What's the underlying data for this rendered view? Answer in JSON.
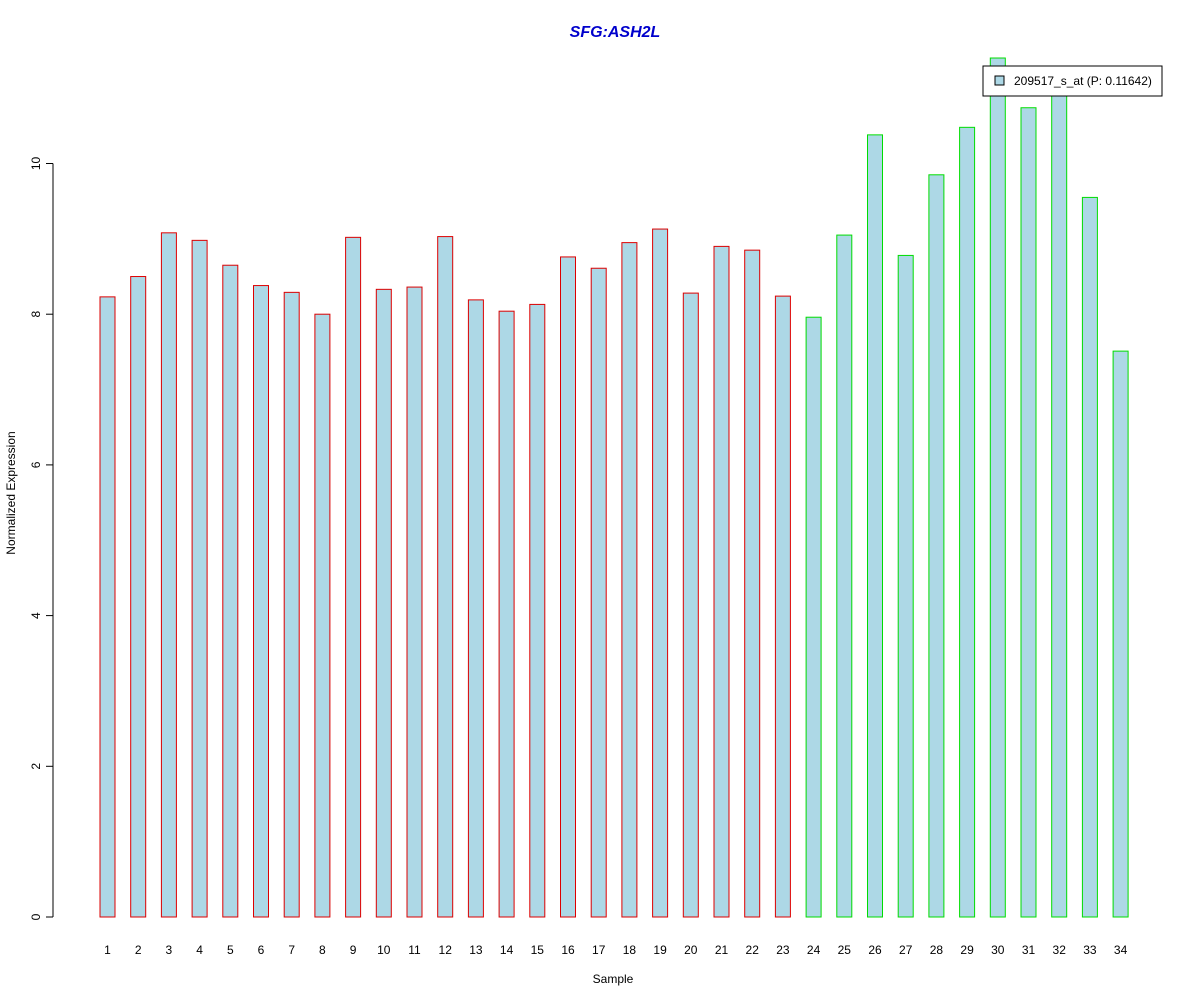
{
  "chart_data": {
    "type": "bar",
    "title": "SFG:ASH2L",
    "xlabel": "Sample",
    "ylabel": "Normalized Expression",
    "ylim": [
      0,
      11.4
    ],
    "y_ticks": [
      0,
      2,
      4,
      6,
      8,
      10
    ],
    "grid": false,
    "categories": [
      "1",
      "2",
      "3",
      "4",
      "5",
      "6",
      "7",
      "8",
      "9",
      "10",
      "11",
      "12",
      "13",
      "14",
      "15",
      "16",
      "17",
      "18",
      "19",
      "20",
      "21",
      "22",
      "23",
      "24",
      "25",
      "26",
      "27",
      "28",
      "29",
      "30",
      "31",
      "32",
      "33",
      "34"
    ],
    "series": [
      {
        "name": "209517_s_at (P: 0.11642)",
        "values": [
          8.23,
          8.5,
          9.08,
          8.98,
          8.65,
          8.38,
          8.29,
          8.0,
          9.02,
          8.33,
          8.36,
          9.03,
          8.19,
          8.04,
          8.13,
          8.76,
          8.61,
          8.95,
          9.13,
          8.28,
          8.9,
          8.85,
          8.24,
          7.96,
          9.05,
          10.38,
          8.78,
          9.85,
          10.48,
          11.4,
          10.74,
          11.0,
          9.55,
          7.51
        ]
      }
    ],
    "group_of_bar": [
      "a",
      "a",
      "a",
      "a",
      "a",
      "a",
      "a",
      "a",
      "a",
      "a",
      "a",
      "a",
      "a",
      "a",
      "a",
      "a",
      "a",
      "a",
      "a",
      "a",
      "a",
      "a",
      "a",
      "b",
      "b",
      "b",
      "b",
      "b",
      "b",
      "b",
      "b",
      "b",
      "b",
      "b"
    ],
    "legend_position": "top-right",
    "colors": {
      "title": "#0000cc",
      "bar_fill": "#add8e6",
      "group_a_border": "#dd0000",
      "group_b_border": "#00dd00",
      "axis": "#000000"
    }
  }
}
